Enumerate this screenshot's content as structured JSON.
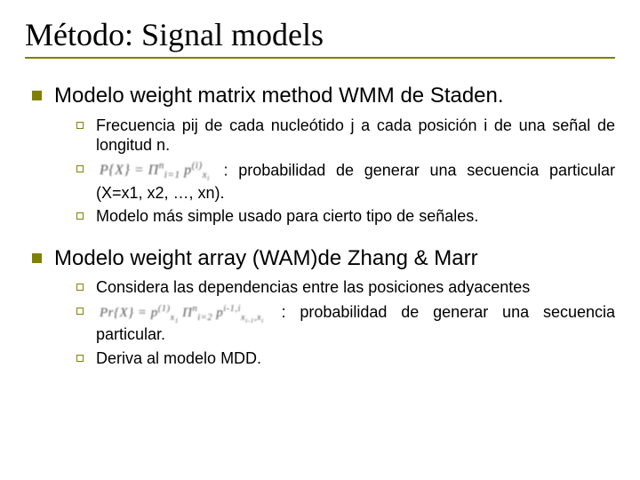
{
  "title": "Método: Signal models",
  "colors": {
    "accent": "#808000",
    "background": "#ffffff",
    "text": "#000000",
    "subbullet_border": "#808000"
  },
  "typography": {
    "title_font": "Times New Roman",
    "title_size_pt": 36,
    "body_font": "Arial",
    "h2_size_pt": 24,
    "sub_size_pt": 18
  },
  "sections": [
    {
      "heading": "Modelo weight matrix method WMM de Staden.",
      "items": [
        {
          "text": "Frecuencia pij de cada nucleótido j a cada posición i de una señal de longitud n."
        },
        {
          "formula": "P{X} = Πⁿᵢ₌₁ p⁽ⁱ⁾ₓᵢ",
          "tail": ": probabilidad de generar una secuencia particular (X=x1, x2, …, xn)."
        },
        {
          "text": "Modelo más simple usado para cierto tipo de señales."
        }
      ]
    },
    {
      "heading": "Modelo weight array (WAM)de Zhang & Marr",
      "items": [
        {
          "text": "Considera las dependencias entre las posiciones adyacentes"
        },
        {
          "formula": "Pr{X} = p⁽¹⁾ₓ₁ Πⁿᵢ₌₂ pⁱ⁻¹,ⁱₓᵢ₋₁,ₓᵢ",
          "tail": ": probabilidad de generar una secuencia particular."
        },
        {
          "text": "Deriva al modelo MDD."
        }
      ]
    }
  ]
}
